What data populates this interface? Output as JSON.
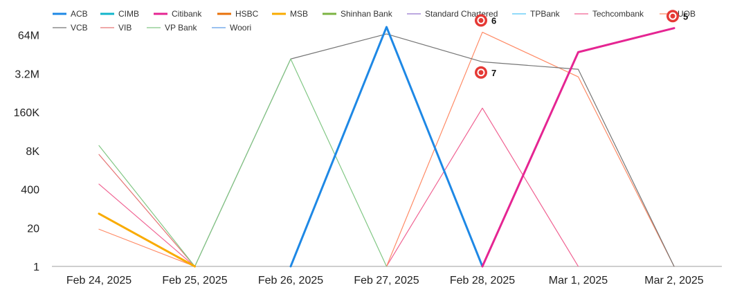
{
  "chart_data": {
    "type": "line",
    "y_scale": "log",
    "ylim": [
      1,
      300000000
    ],
    "grid": false,
    "legend_position": "top",
    "categories": [
      "Feb 24, 2025",
      "Feb 25, 2025",
      "Feb 26, 2025",
      "Feb 27, 2025",
      "Feb 28, 2025",
      "Mar 1, 2025",
      "Mar 2, 2025"
    ],
    "y_ticks": [
      {
        "value": 1,
        "label": "1"
      },
      {
        "value": 20,
        "label": "20"
      },
      {
        "value": 400,
        "label": "400"
      },
      {
        "value": 8000,
        "label": "8K"
      },
      {
        "value": 160000,
        "label": "160K"
      },
      {
        "value": 3200000,
        "label": "3.2M"
      },
      {
        "value": 64000000,
        "label": "64M"
      }
    ],
    "series": [
      {
        "name": "ACB",
        "color": "#1e88e5",
        "bold": true,
        "values": [
          null,
          null,
          1,
          120000000,
          1,
          null,
          null
        ]
      },
      {
        "name": "CIMB",
        "color": "#12b5cb",
        "bold": true,
        "values": [
          null,
          null,
          null,
          null,
          null,
          null,
          null
        ]
      },
      {
        "name": "Citibank",
        "color": "#e52592",
        "bold": true,
        "values": [
          null,
          null,
          null,
          null,
          1,
          17000000,
          110000000
        ]
      },
      {
        "name": "HSBC",
        "color": "#e8710a",
        "bold": true,
        "values": [
          null,
          null,
          null,
          null,
          null,
          null,
          null
        ]
      },
      {
        "name": "MSB",
        "color": "#f9ab00",
        "bold": true,
        "values": [
          60,
          1,
          null,
          null,
          null,
          null,
          null
        ]
      },
      {
        "name": "Shinhan Bank",
        "color": "#7cb342",
        "bold": true,
        "values": [
          null,
          null,
          null,
          null,
          null,
          null,
          null
        ]
      },
      {
        "name": "Standard Chartered",
        "color": "#9575cd",
        "bold": false,
        "values": [
          null,
          null,
          null,
          null,
          null,
          null,
          null
        ]
      },
      {
        "name": "TPBank",
        "color": "#4fc3f7",
        "bold": false,
        "values": [
          null,
          null,
          null,
          null,
          null,
          null,
          null
        ]
      },
      {
        "name": "Techcombank",
        "color": "#f06292",
        "bold": false,
        "values": [
          600,
          1,
          null,
          1,
          220000,
          1,
          null
        ]
      },
      {
        "name": "UOB",
        "color": "#ff8a65",
        "bold": false,
        "values": [
          18,
          1,
          null,
          1,
          80000000,
          2500000,
          1
        ]
      },
      {
        "name": "VCB",
        "color": "#757575",
        "bold": false,
        "values": [
          null,
          1,
          10000000,
          70000000,
          8000000,
          4500000,
          1
        ]
      },
      {
        "name": "VIB",
        "color": "#e57373",
        "bold": false,
        "values": [
          6000,
          1,
          null,
          null,
          null,
          null,
          null
        ]
      },
      {
        "name": "VP Bank",
        "color": "#81c784",
        "bold": false,
        "values": [
          12000,
          1,
          10000000,
          1,
          null,
          null,
          null
        ]
      },
      {
        "name": "Woori",
        "color": "#5c9ce6",
        "bold": false,
        "values": [
          null,
          null,
          null,
          null,
          null,
          null,
          null
        ]
      }
    ],
    "annotations": [
      {
        "label": "6",
        "x_index": 4,
        "y": 200000000
      },
      {
        "label": "7",
        "x_index": 4,
        "y": 3500000
      },
      {
        "label": "5",
        "x_index": 6,
        "y": 280000000
      }
    ]
  }
}
